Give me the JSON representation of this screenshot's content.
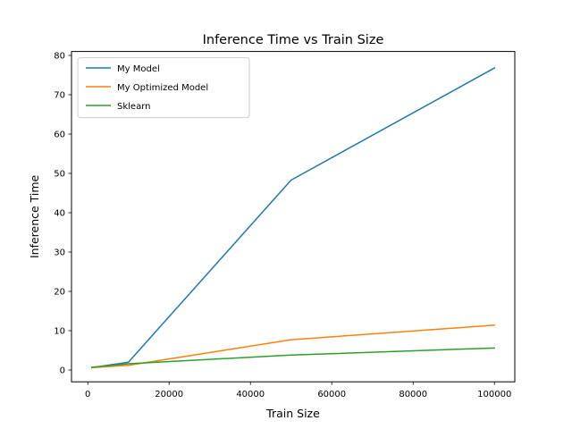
{
  "chart_data": {
    "type": "line",
    "title": "Inference Time vs Train Size",
    "xlabel": "Train Size",
    "ylabel": "Inference Time",
    "xlim": [
      -4000,
      105000
    ],
    "ylim": [
      -3,
      81
    ],
    "xticks": [
      0,
      20000,
      40000,
      60000,
      80000,
      100000
    ],
    "yticks": [
      0,
      10,
      20,
      30,
      40,
      50,
      60,
      70,
      80
    ],
    "x": [
      1000,
      10000,
      50000,
      100000
    ],
    "series": [
      {
        "name": "My Model",
        "color": "#1f77b4",
        "values": [
          0.6,
          2.0,
          48.3,
          76.8
        ]
      },
      {
        "name": "My Optimized Model",
        "color": "#ff7f0e",
        "values": [
          0.6,
          1.2,
          7.7,
          11.4
        ]
      },
      {
        "name": "Sklearn",
        "color": "#2ca02c",
        "values": [
          0.7,
          1.6,
          3.8,
          5.6
        ]
      }
    ],
    "grid": false,
    "legend_position": "upper left"
  }
}
